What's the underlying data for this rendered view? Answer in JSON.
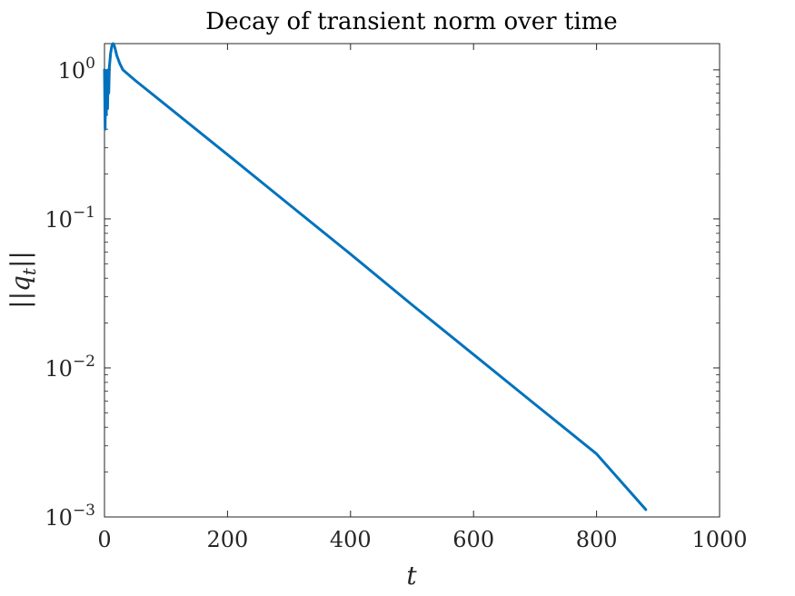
{
  "chart_data": {
    "type": "line",
    "title": "Decay of transient norm over time",
    "xlabel": "t",
    "ylabel": "||q_t||",
    "xlim": [
      0,
      1000
    ],
    "ylim": [
      0.001,
      1.5
    ],
    "yscale": "log",
    "grid": false,
    "x_ticks": [
      0,
      200,
      400,
      600,
      800,
      1000
    ],
    "y_ticks": [
      {
        "value": 1,
        "base": "10",
        "exp": "0"
      },
      {
        "value": 0.1,
        "base": "10",
        "exp": "−1"
      },
      {
        "value": 0.01,
        "base": "10",
        "exp": "−2"
      },
      {
        "value": 0.001,
        "base": "10",
        "exp": "−3"
      }
    ],
    "line_color": "#0072BD",
    "series": [
      {
        "x": [
          0,
          1,
          2,
          3,
          4,
          5,
          6,
          7,
          8,
          10,
          12,
          14,
          16,
          18,
          20,
          25,
          30,
          40,
          50,
          100,
          200,
          300,
          400,
          500,
          600,
          700,
          800,
          880
        ],
        "y": [
          1.0,
          0.4,
          0.95,
          0.5,
          0.98,
          0.55,
          1.0,
          0.7,
          1.05,
          1.3,
          1.45,
          1.5,
          1.45,
          1.35,
          1.25,
          1.1,
          1.0,
          0.92,
          0.85,
          0.58,
          0.27,
          0.125,
          0.058,
          0.0265,
          0.0123,
          0.0057,
          0.00265,
          0.00112
        ]
      }
    ]
  }
}
